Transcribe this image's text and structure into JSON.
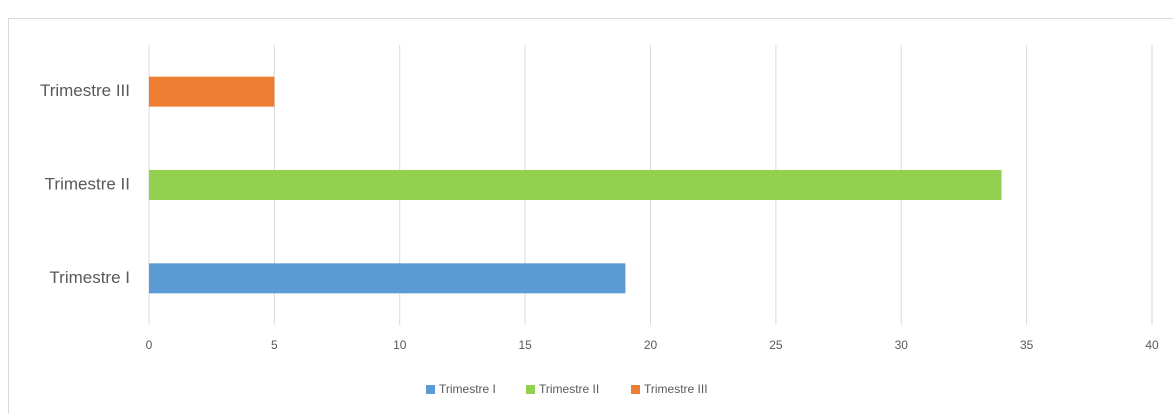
{
  "chart_data": {
    "type": "hbar",
    "categories": [
      "Trimestre I",
      "Trimestre II",
      "Trimestre III"
    ],
    "values": [
      19,
      34,
      5
    ],
    "colors": [
      "#5b9bd5",
      "#92d050",
      "#ed7d31"
    ],
    "xlim": [
      0,
      40
    ],
    "xticks": [
      0,
      5,
      10,
      15,
      20,
      25,
      30,
      35,
      40
    ],
    "grid": true,
    "legend": "bottom"
  }
}
